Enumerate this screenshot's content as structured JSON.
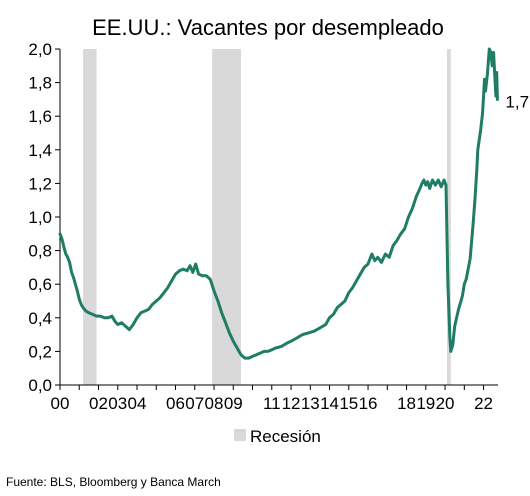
{
  "chart_data": {
    "type": "line",
    "title": "EE.UU.: Vacantes por desempleado",
    "xlabel": "",
    "ylabel": "",
    "ylim": [
      0,
      2.0
    ],
    "xlim": [
      2000.0,
      2022.75
    ],
    "grid": false,
    "legend_position": "bottom",
    "y_ticks": [
      "0,0",
      "0,2",
      "0,4",
      "0,6",
      "0,8",
      "1,0",
      "1,2",
      "1,4",
      "1,6",
      "1,8",
      "2,0"
    ],
    "x_ticks": [
      {
        "year": 2000,
        "label": "00"
      },
      {
        "year": 2002,
        "label": "02"
      },
      {
        "year": 2003,
        "label": "03"
      },
      {
        "year": 2004,
        "label": "04"
      },
      {
        "year": 2006,
        "label": "06"
      },
      {
        "year": 2007,
        "label": "07"
      },
      {
        "year": 2008,
        "label": "08"
      },
      {
        "year": 2009,
        "label": "09"
      },
      {
        "year": 2011,
        "label": "11"
      },
      {
        "year": 2012,
        "label": "12"
      },
      {
        "year": 2013,
        "label": "13"
      },
      {
        "year": 2014,
        "label": "14"
      },
      {
        "year": 2015,
        "label": "15"
      },
      {
        "year": 2016,
        "label": "16"
      },
      {
        "year": 2018,
        "label": "18"
      },
      {
        "year": 2019,
        "label": "19"
      },
      {
        "year": 2020,
        "label": "20"
      },
      {
        "year": 2022,
        "label": "22"
      }
    ],
    "recessions": [
      {
        "start": 2001.2,
        "end": 2001.9
      },
      {
        "start": 2007.9,
        "end": 2009.4
      },
      {
        "start": 2020.1,
        "end": 2020.3
      }
    ],
    "legend_label": "Recesión",
    "end_label": "1,7",
    "line_color": "#1e7d64",
    "recession_color": "#d9d9d9",
    "series": [
      {
        "points": [
          [
            2000.0,
            0.9
          ],
          [
            2000.1,
            0.87
          ],
          [
            2000.2,
            0.82
          ],
          [
            2000.3,
            0.78
          ],
          [
            2000.4,
            0.76
          ],
          [
            2000.5,
            0.73
          ],
          [
            2000.6,
            0.67
          ],
          [
            2000.7,
            0.64
          ],
          [
            2000.8,
            0.6
          ],
          [
            2000.9,
            0.56
          ],
          [
            2001.0,
            0.51
          ],
          [
            2001.1,
            0.48
          ],
          [
            2001.2,
            0.46
          ],
          [
            2001.35,
            0.44
          ],
          [
            2001.5,
            0.43
          ],
          [
            2001.7,
            0.42
          ],
          [
            2001.9,
            0.41
          ],
          [
            2002.1,
            0.41
          ],
          [
            2002.3,
            0.4
          ],
          [
            2002.5,
            0.4
          ],
          [
            2002.7,
            0.41
          ],
          [
            2002.85,
            0.38
          ],
          [
            2003.0,
            0.36
          ],
          [
            2003.2,
            0.37
          ],
          [
            2003.4,
            0.35
          ],
          [
            2003.6,
            0.33
          ],
          [
            2003.8,
            0.36
          ],
          [
            2004.0,
            0.4
          ],
          [
            2004.2,
            0.43
          ],
          [
            2004.4,
            0.44
          ],
          [
            2004.6,
            0.45
          ],
          [
            2004.8,
            0.48
          ],
          [
            2005.0,
            0.5
          ],
          [
            2005.2,
            0.52
          ],
          [
            2005.4,
            0.55
          ],
          [
            2005.6,
            0.58
          ],
          [
            2005.8,
            0.62
          ],
          [
            2006.0,
            0.66
          ],
          [
            2006.2,
            0.68
          ],
          [
            2006.4,
            0.69
          ],
          [
            2006.6,
            0.68
          ],
          [
            2006.75,
            0.71
          ],
          [
            2006.9,
            0.67
          ],
          [
            2007.05,
            0.72
          ],
          [
            2007.2,
            0.66
          ],
          [
            2007.4,
            0.65
          ],
          [
            2007.6,
            0.65
          ],
          [
            2007.8,
            0.63
          ],
          [
            2008.0,
            0.56
          ],
          [
            2008.2,
            0.5
          ],
          [
            2008.4,
            0.43
          ],
          [
            2008.6,
            0.37
          ],
          [
            2008.8,
            0.31
          ],
          [
            2009.0,
            0.26
          ],
          [
            2009.2,
            0.22
          ],
          [
            2009.4,
            0.18
          ],
          [
            2009.6,
            0.16
          ],
          [
            2009.8,
            0.16
          ],
          [
            2010.0,
            0.17
          ],
          [
            2010.2,
            0.18
          ],
          [
            2010.4,
            0.19
          ],
          [
            2010.6,
            0.2
          ],
          [
            2010.8,
            0.2
          ],
          [
            2011.0,
            0.21
          ],
          [
            2011.2,
            0.22
          ],
          [
            2011.5,
            0.23
          ],
          [
            2011.8,
            0.25
          ],
          [
            2012.0,
            0.26
          ],
          [
            2012.3,
            0.28
          ],
          [
            2012.6,
            0.3
          ],
          [
            2012.9,
            0.31
          ],
          [
            2013.2,
            0.32
          ],
          [
            2013.5,
            0.34
          ],
          [
            2013.8,
            0.36
          ],
          [
            2014.0,
            0.4
          ],
          [
            2014.2,
            0.42
          ],
          [
            2014.4,
            0.46
          ],
          [
            2014.6,
            0.48
          ],
          [
            2014.8,
            0.5
          ],
          [
            2015.0,
            0.55
          ],
          [
            2015.2,
            0.58
          ],
          [
            2015.4,
            0.62
          ],
          [
            2015.6,
            0.66
          ],
          [
            2015.8,
            0.7
          ],
          [
            2016.0,
            0.72
          ],
          [
            2016.2,
            0.78
          ],
          [
            2016.35,
            0.74
          ],
          [
            2016.5,
            0.76
          ],
          [
            2016.7,
            0.73
          ],
          [
            2016.9,
            0.78
          ],
          [
            2017.1,
            0.76
          ],
          [
            2017.3,
            0.83
          ],
          [
            2017.5,
            0.86
          ],
          [
            2017.7,
            0.9
          ],
          [
            2017.9,
            0.93
          ],
          [
            2018.1,
            1.0
          ],
          [
            2018.3,
            1.05
          ],
          [
            2018.5,
            1.12
          ],
          [
            2018.7,
            1.17
          ],
          [
            2018.8,
            1.2
          ],
          [
            2018.9,
            1.22
          ],
          [
            2019.0,
            1.19
          ],
          [
            2019.1,
            1.21
          ],
          [
            2019.2,
            1.17
          ],
          [
            2019.35,
            1.22
          ],
          [
            2019.5,
            1.19
          ],
          [
            2019.65,
            1.22
          ],
          [
            2019.8,
            1.18
          ],
          [
            2019.95,
            1.22
          ],
          [
            2020.05,
            1.19
          ],
          [
            2020.15,
            0.6
          ],
          [
            2020.25,
            0.28
          ],
          [
            2020.3,
            0.2
          ],
          [
            2020.4,
            0.24
          ],
          [
            2020.5,
            0.35
          ],
          [
            2020.7,
            0.45
          ],
          [
            2020.9,
            0.53
          ],
          [
            2021.0,
            0.6
          ],
          [
            2021.1,
            0.63
          ],
          [
            2021.3,
            0.75
          ],
          [
            2021.45,
            0.95
          ],
          [
            2021.55,
            1.1
          ],
          [
            2021.65,
            1.28
          ],
          [
            2021.7,
            1.4
          ],
          [
            2021.85,
            1.52
          ],
          [
            2021.95,
            1.62
          ],
          [
            2022.05,
            1.82
          ],
          [
            2022.1,
            1.75
          ],
          [
            2022.2,
            1.85
          ],
          [
            2022.3,
            2.0
          ],
          [
            2022.38,
            1.98
          ],
          [
            2022.45,
            1.9
          ],
          [
            2022.52,
            1.98
          ],
          [
            2022.58,
            1.85
          ],
          [
            2022.64,
            1.72
          ],
          [
            2022.68,
            1.86
          ],
          [
            2022.72,
            1.7
          ]
        ]
      }
    ]
  },
  "source": "Fuente: BLS, Bloomberg y Banca March"
}
